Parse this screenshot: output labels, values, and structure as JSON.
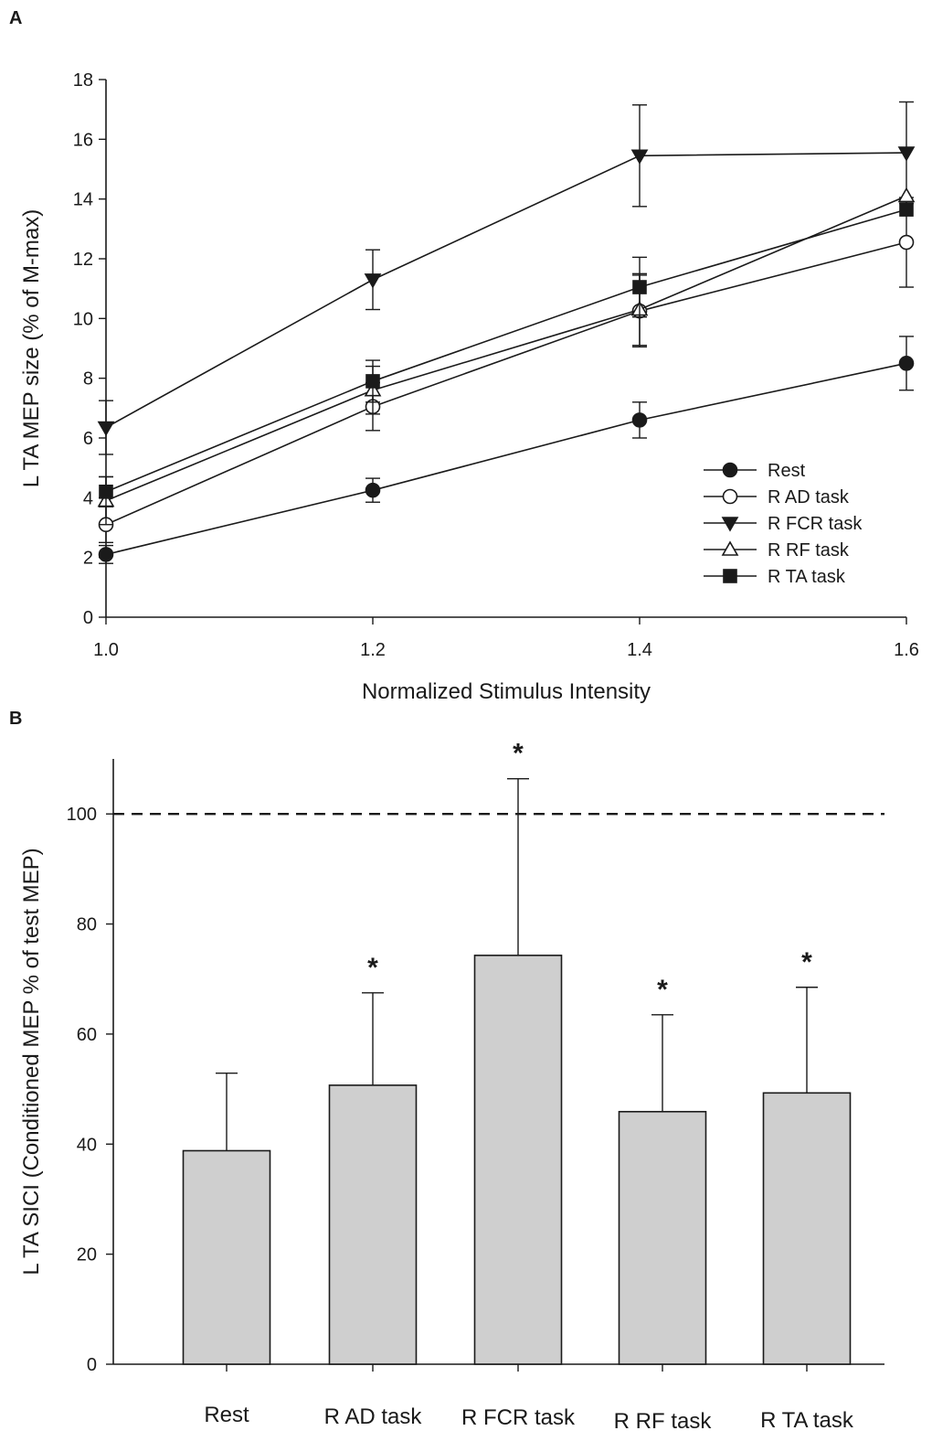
{
  "chart_data": [
    {
      "panel": "A",
      "type": "line",
      "xlabel": "Normalized Stimulus Intensity",
      "ylabel": "L TA MEP size (% of M-max)",
      "xlim": [
        1.0,
        1.6
      ],
      "ylim": [
        0,
        18
      ],
      "x_ticks": [
        "1.0",
        "1.2",
        "1.4",
        "1.6"
      ],
      "y_ticks": [
        "0",
        "2",
        "4",
        "6",
        "8",
        "10",
        "12",
        "14",
        "16",
        "18"
      ],
      "grid": false,
      "legend_position": "bottom-right",
      "x": [
        1.0,
        1.2,
        1.4,
        1.6
      ],
      "series": [
        {
          "name": "Rest",
          "marker": "filled-circle",
          "values": [
            2.1,
            4.25,
            6.6,
            8.5
          ],
          "errors": [
            0.3,
            0.4,
            0.6,
            0.9
          ]
        },
        {
          "name": "R AD task",
          "marker": "open-circle",
          "values": [
            3.1,
            7.05,
            10.25,
            12.55
          ],
          "errors": [
            0.6,
            0.8,
            1.2,
            1.5
          ]
        },
        {
          "name": "R FCR task",
          "marker": "filled-triangle-down",
          "values": [
            6.35,
            11.3,
            15.45,
            15.55
          ],
          "errors": [
            0.9,
            1.0,
            1.7,
            1.7
          ]
        },
        {
          "name": "R RF task",
          "marker": "open-triangle-up",
          "values": [
            3.9,
            7.6,
            10.3,
            14.1
          ],
          "errors": [
            0.8,
            0.8,
            1.2,
            0.0
          ]
        },
        {
          "name": "R TA task",
          "marker": "filled-square",
          "values": [
            4.2,
            7.9,
            11.05,
            13.65
          ],
          "errors": [
            0.5,
            0.7,
            1.0,
            0.0
          ]
        }
      ]
    },
    {
      "panel": "B",
      "type": "bar",
      "xlabel": "",
      "ylabel": "L TA SICI (Conditioned MEP % of test MEP)",
      "ylim": [
        0,
        110
      ],
      "y_ticks": [
        "0",
        "20",
        "40",
        "60",
        "80",
        "100"
      ],
      "grid": false,
      "reference_line": 100,
      "categories": [
        "Rest",
        "R AD task",
        "R FCR task",
        "R RF task",
        "R TA task"
      ],
      "values": [
        38.8,
        50.7,
        74.3,
        45.9,
        49.3
      ],
      "errors": [
        14.1,
        16.8,
        32.1,
        17.6,
        19.2
      ],
      "significance": [
        "",
        "*",
        "*",
        "*",
        "*"
      ],
      "bar_color": "#cfcfcf"
    }
  ]
}
